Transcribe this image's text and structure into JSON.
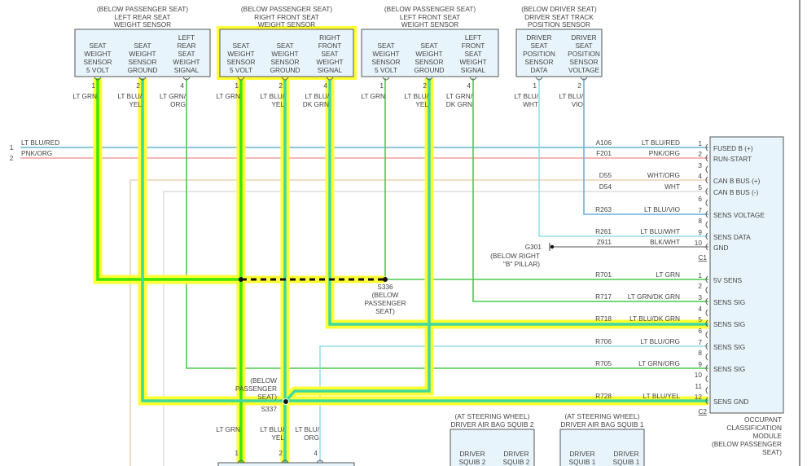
{
  "sensors": [
    {
      "location": "(BELOW PASSENGER SEAT)",
      "title": [
        "LEFT REAR SEAT",
        "WEIGHT SENSOR"
      ],
      "highlighted": false,
      "pins": [
        {
          "label": [
            "SEAT",
            "WEIGHT",
            "SENSOR",
            "5 VOLT"
          ],
          "num": "1",
          "wire": [
            "LT GRN"
          ]
        },
        {
          "label": [
            "SEAT",
            "WEIGHT",
            "SENSOR",
            "GROUND"
          ],
          "num": "2",
          "wire": [
            "LT BLU/",
            "YEL"
          ]
        },
        {
          "label": [
            "LEFT",
            "REAR",
            "SEAT",
            "WEIGHT",
            "SIGNAL"
          ],
          "num": "4",
          "wire": [
            "LT GRN/",
            "ORG"
          ]
        }
      ]
    },
    {
      "location": "(BELOW PASSENGER SEAT)",
      "title": [
        "RIGHT FRONT SEAT",
        "WEIGHT SENSOR"
      ],
      "highlighted": true,
      "pins": [
        {
          "label": [
            "SEAT",
            "WEIGHT",
            "SENSOR",
            "5 VOLT"
          ],
          "num": "1",
          "wire": [
            "LT GRN"
          ]
        },
        {
          "label": [
            "SEAT",
            "WEIGHT",
            "SENSOR",
            "GROUND"
          ],
          "num": "2",
          "wire": [
            "LT BLU/",
            "YEL"
          ]
        },
        {
          "label": [
            "RIGHT",
            "FRONT",
            "SEAT",
            "WEIGHT",
            "SIGNAL"
          ],
          "num": "4",
          "wire": [
            "LT BLU/",
            "DK GRN"
          ]
        }
      ]
    },
    {
      "location": "(BELOW PASSENGER SEAT)",
      "title": [
        "LEFT FRONT SEAT",
        "WEIGHT SENSOR"
      ],
      "highlighted": false,
      "pins": [
        {
          "label": [
            "SEAT",
            "WEIGHT",
            "SENSOR",
            "5 VOLT"
          ],
          "num": "1",
          "wire": [
            "LT GRN"
          ]
        },
        {
          "label": [
            "SEAT",
            "WEIGHT",
            "SENSOR",
            "GROUND"
          ],
          "num": "2",
          "wire": [
            "LT BLU/",
            "YEL"
          ]
        },
        {
          "label": [
            "LEFT",
            "FRONT",
            "SEAT",
            "WEIGHT",
            "SIGNAL"
          ],
          "num": "4",
          "wire": [
            "LT GRN/",
            "DK GRN"
          ]
        }
      ]
    },
    {
      "location": "(BELOW DRIVER SEAT)",
      "title": [
        "DRIVER SEAT TRACK",
        "POSITION SENSOR"
      ],
      "highlighted": false,
      "pins": [
        {
          "label": [
            "DRIVER",
            "SEAT",
            "POSITION",
            "SENSOR",
            "DATA"
          ],
          "num": "1",
          "wire": [
            "LT BLU/",
            "WHT"
          ]
        },
        {
          "label": [
            "DRIVER",
            "SEAT",
            "POSITION",
            "SENSOR",
            "VOLTAGE"
          ],
          "num": "2",
          "wire": [
            "LT BLU/",
            "VIO"
          ]
        }
      ]
    }
  ],
  "left_inputs": [
    {
      "num": "1",
      "wire": "LT BLU/RED"
    },
    {
      "num": "2",
      "wire": "PNK/ORG"
    }
  ],
  "module": {
    "title": [
      "OCCUPANT",
      "CLASSIFICATION",
      "MODULE",
      "(BELOW PASSENGER",
      "SEAT)"
    ],
    "c1": {
      "label": "C1",
      "pins": [
        {
          "num": "1",
          "circuit": "A106",
          "color": "LT BLU/RED",
          "func": "FUSED B (+)"
        },
        {
          "num": "2",
          "circuit": "F201",
          "color": "PNK/ORG",
          "func": "RUN-START"
        },
        {
          "num": "3",
          "circuit": "",
          "color": "",
          "func": ""
        },
        {
          "num": "4",
          "circuit": "D55",
          "color": "WHT/ORG",
          "func": "CAN B BUS (+)"
        },
        {
          "num": "5",
          "circuit": "D54",
          "color": "WHT",
          "func": "CAN B BUS (-)"
        },
        {
          "num": "6",
          "circuit": "",
          "color": "",
          "func": ""
        },
        {
          "num": "7",
          "circuit": "R263",
          "color": "LT BLU/VIO",
          "func": "SENS VOLTAGE"
        },
        {
          "num": "8",
          "circuit": "",
          "color": "",
          "func": ""
        },
        {
          "num": "9",
          "circuit": "R261",
          "color": "LT BLU/WHT",
          "func": "SENS DATA"
        },
        {
          "num": "10",
          "circuit": "Z911",
          "color": "BLK/WHT",
          "func": "GND"
        }
      ]
    },
    "c2": {
      "label": "C2",
      "pins": [
        {
          "num": "1",
          "circuit": "R701",
          "color": "LT GRN",
          "func": "5V SENS"
        },
        {
          "num": "2",
          "circuit": "",
          "color": "",
          "func": ""
        },
        {
          "num": "3",
          "circuit": "R717",
          "color": "LT GRN/DK GRN",
          "func": "SENS SIG"
        },
        {
          "num": "4",
          "circuit": "",
          "color": "",
          "func": ""
        },
        {
          "num": "5",
          "circuit": "R718",
          "color": "LT BLU/DK GRN",
          "func": "SENS SIG"
        },
        {
          "num": "6",
          "circuit": "",
          "color": "",
          "func": ""
        },
        {
          "num": "7",
          "circuit": "R706",
          "color": "LT BLU/ORG",
          "func": "SENS SIG"
        },
        {
          "num": "8",
          "circuit": "",
          "color": "",
          "func": ""
        },
        {
          "num": "9",
          "circuit": "R705",
          "color": "LT GRN/ORG",
          "func": "SENS SIG"
        },
        {
          "num": "10",
          "circuit": "",
          "color": "",
          "func": ""
        },
        {
          "num": "11",
          "circuit": "",
          "color": "",
          "func": ""
        },
        {
          "num": "12",
          "circuit": "R728",
          "color": "LT BLU/YEL",
          "func": "SENS GND"
        }
      ]
    }
  },
  "splices": {
    "s336": [
      "S336",
      "(BELOW",
      "PASSENGER",
      "SEAT)"
    ],
    "s337": [
      "(BELOW",
      "PASSENGER",
      "SEAT)",
      "S337"
    ]
  },
  "ground": {
    "id": "G301",
    "location": [
      "(BELOW RIGHT",
      "\"B\" PILLAR)"
    ]
  },
  "bottom_connector": {
    "pins": [
      {
        "num": "1",
        "wire": [
          "LT GRN"
        ]
      },
      {
        "num": "2",
        "wire": [
          "LT BLU/",
          "YEL"
        ]
      },
      {
        "num": "4",
        "wire": [
          "LT BLU/",
          "ORG"
        ]
      }
    ]
  },
  "squibs": [
    {
      "location": "(AT STEERING WHEEL)",
      "title": "DRIVER AIR BAG SQUIB 2",
      "pins": [
        [
          "DRIVER",
          "SQUIB 2"
        ],
        [
          "DRIVER",
          "SQUIB 2"
        ]
      ]
    },
    {
      "location": "(AT STEERING WHEEL)",
      "title": "DRIVER AIR BAG SQUIB 1",
      "pins": [
        [
          "DRIVER",
          "SQUIB 1"
        ],
        [
          "DRIVER",
          "SQUIB 1"
        ]
      ]
    }
  ],
  "colors": {
    "highlight": "#ffff33",
    "lt_grn_core": "#3ee600",
    "lt_blu_yel_core": "#3fd99a",
    "lt_grn": "#4ccb4c",
    "lt_blu": "#7fd8e6",
    "lt_blu_vio": "#6aaee0",
    "lt_blu_red": "#4aa8c0",
    "pnk_org": "#f08a8a",
    "wht_org": "#e5c8a8",
    "wht": "#d8d8d8",
    "blk_wht": "#777777",
    "box_fill": "#e8f4fb",
    "box_stroke": "#555555"
  }
}
